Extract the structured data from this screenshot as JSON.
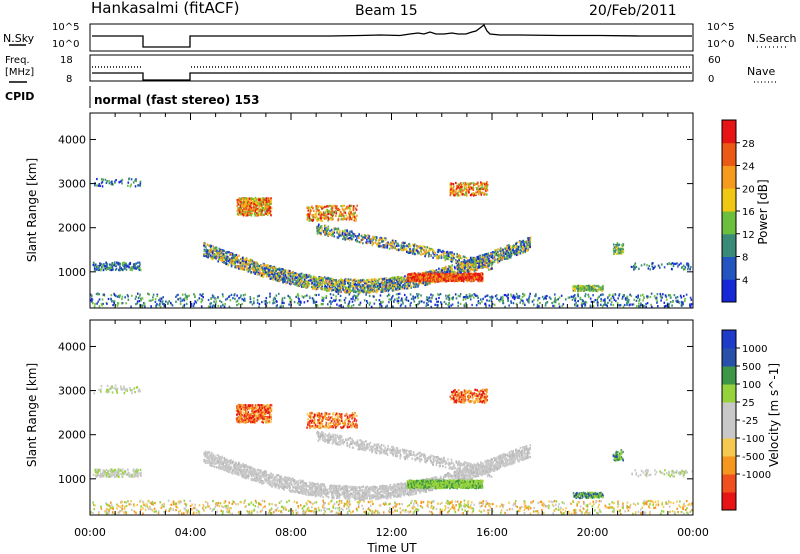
{
  "header": {
    "station": "Hankasalmi (fitACF)",
    "beam": "Beam 15",
    "date": "20/Feb/2011"
  },
  "noise_panel": {
    "left_label": "N.Sky",
    "right_label": "N.Search",
    "left_ticks": [
      "10^5",
      "10^0"
    ],
    "right_ticks": [
      "10^5",
      "10^0"
    ]
  },
  "freq_panel": {
    "left_label_1": "Freq.",
    "left_label_2": "[MHz]",
    "right_label": "Nave",
    "left_ticks": [
      "18",
      "8"
    ],
    "right_ticks": [
      "60",
      "0"
    ]
  },
  "cpid": {
    "label": "CPID",
    "text": "normal (fast stereo) 153"
  },
  "colors": {
    "power_scale": [
      "#1428d8",
      "#2255c0",
      "#3a8a78",
      "#6cbf3c",
      "#f0c814",
      "#f59a1e",
      "#eb5a14",
      "#e61414"
    ],
    "velocity_scale": [
      "#e61414",
      "#f0501e",
      "#f5961e",
      "#f5c850",
      "#c8c8c8",
      "#c8c8c8",
      "#96d23c",
      "#3c9646",
      "#2850aa",
      "#1e3cc8"
    ]
  },
  "chart_data": [
    {
      "type": "heatmap",
      "title": "",
      "ylabel": "Slant Range [km]",
      "xlabel": "",
      "x_range_hours": [
        0,
        24
      ],
      "ylim": [
        180,
        4600
      ],
      "y_ticks": [
        "1000",
        "2000",
        "3000",
        "4000"
      ],
      "colorbar_label": "Power [dB]",
      "colorbar_ticks": [
        "4",
        "8",
        "12",
        "16",
        "20",
        "24",
        "28"
      ],
      "colorbar_range": [
        0,
        32
      ]
    },
    {
      "type": "heatmap",
      "title": "",
      "ylabel": "Slant Range [km]",
      "xlabel": "Time UT",
      "x_range_hours": [
        0,
        24
      ],
      "ylim": [
        180,
        4600
      ],
      "x_ticks": [
        "00:00",
        "04:00",
        "08:00",
        "12:00",
        "16:00",
        "20:00",
        "00:00"
      ],
      "y_ticks": [
        "1000",
        "2000",
        "3000",
        "4000"
      ],
      "colorbar_label": "Velocity [m s^-1]",
      "colorbar_ticks": [
        "1000",
        "500",
        "100",
        "25",
        "-25",
        "-100",
        "-500",
        "-1000"
      ]
    }
  ]
}
